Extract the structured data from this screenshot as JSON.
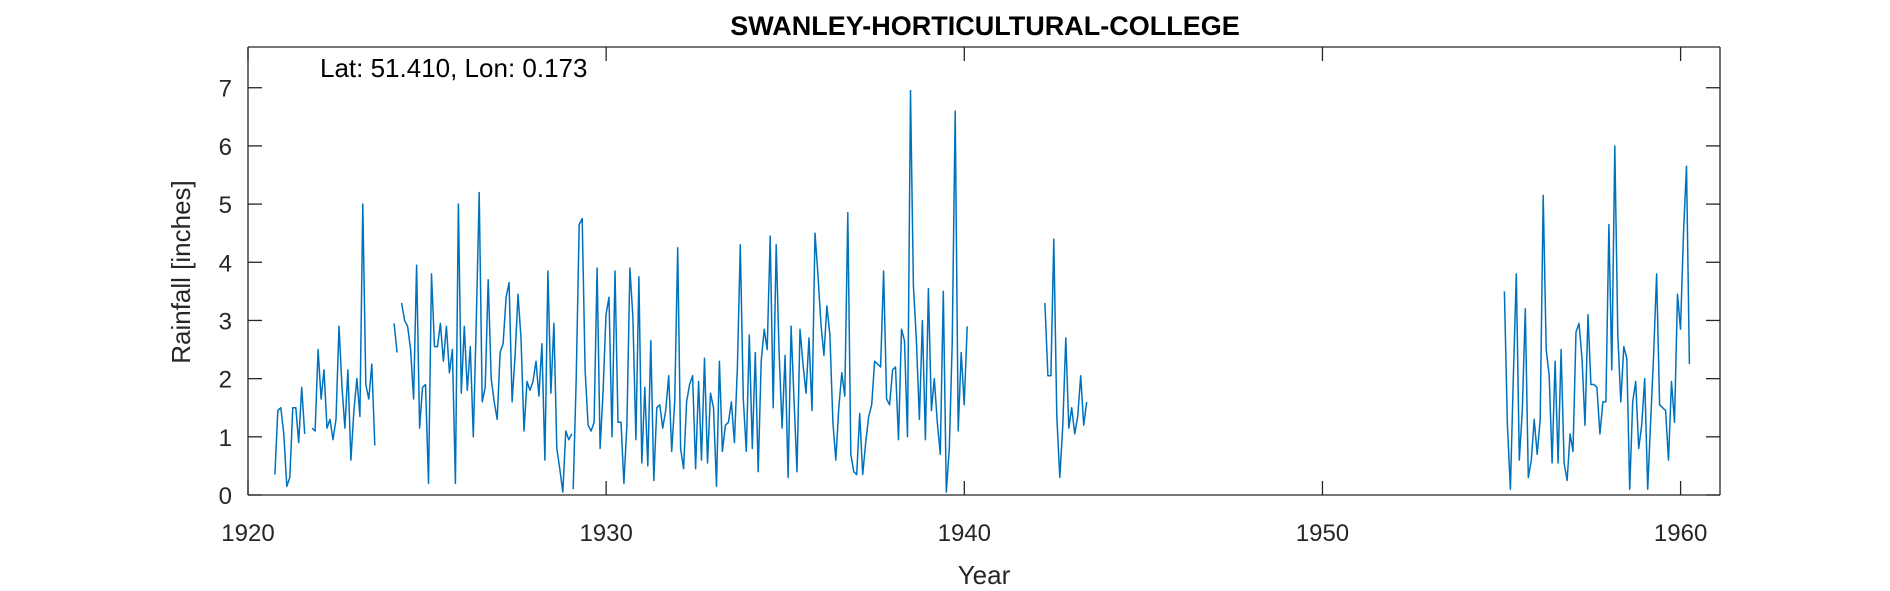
{
  "chart_data": {
    "type": "line",
    "title": "SWANLEY-HORTICULTURAL-COLLEGE",
    "xlabel": "Year",
    "ylabel": "Rainfall [inches]",
    "annotation": "Lat: 51.410, Lon: 0.173",
    "xlim": [
      1920,
      1961.1
    ],
    "ylim": [
      0,
      7.7
    ],
    "xticks": [
      1920,
      1930,
      1940,
      1950,
      1960
    ],
    "yticks": [
      0,
      1,
      2,
      3,
      4,
      5,
      6,
      7
    ],
    "grid": false,
    "line_color": "#0072bd",
    "series": [
      {
        "segments": [
          {
            "start": 1920.75,
            "values": [
              0.35,
              1.45,
              1.5,
              1.05,
              0.15,
              0.3,
              1.5,
              1.5,
              0.9,
              1.85,
              1.05
            ]
          },
          {
            "start": 1921.79,
            "values": [
              1.15,
              1.1,
              2.5,
              1.65,
              2.15,
              1.15,
              1.3,
              0.95,
              1.3,
              2.9,
              1.85,
              1.15,
              2.15,
              0.6,
              1.45,
              2.0,
              1.35,
              5.0,
              1.9,
              1.65,
              2.25,
              0.85
            ]
          },
          {
            "start": 1924.08,
            "values": [
              2.95,
              2.45
            ]
          },
          {
            "start": 1924.29,
            "values": [
              3.3,
              3.0,
              2.9,
              2.5,
              1.65,
              3.95,
              1.15,
              1.85,
              1.9,
              0.2,
              3.8,
              2.55,
              2.55,
              2.95,
              2.3,
              2.9,
              2.1,
              2.5,
              0.2,
              5.0,
              1.75,
              2.9,
              1.8,
              2.55,
              1.0,
              3.0,
              5.2,
              1.6,
              1.85,
              3.7,
              2.0,
              1.6,
              1.3,
              2.45,
              2.6,
              3.4,
              3.65,
              1.6,
              2.4,
              3.45,
              2.7,
              1.1,
              1.95,
              1.8,
              1.95,
              2.3,
              1.7,
              2.6,
              0.6,
              3.85,
              1.75,
              2.95,
              0.8,
              0.45,
              0.05,
              1.1,
              0.95,
              1.05
            ]
          },
          {
            "start": 1929.08,
            "values": [
              0.1,
              2.0,
              4.65,
              4.75,
              2.15,
              1.2,
              1.1,
              1.25,
              3.9,
              0.8,
              1.75,
              3.1,
              3.4,
              1.0,
              3.85,
              1.25,
              1.25,
              0.2,
              1.2,
              3.9,
              3.05,
              0.95,
              3.75,
              0.55,
              1.85,
              0.5,
              2.65,
              0.25,
              1.5,
              1.55,
              1.15,
              1.45,
              2.05,
              0.75,
              1.6,
              4.25,
              0.8,
              0.45,
              1.6,
              1.9,
              2.05,
              0.45,
              1.95,
              0.6,
              2.35,
              0.55,
              1.75,
              1.5,
              0.15,
              2.3,
              0.75,
              1.2,
              1.25,
              1.6,
              0.9,
              2.2,
              4.3,
              1.65,
              0.75,
              2.75,
              0.8,
              2.45,
              0.4,
              2.3,
              2.85,
              2.5,
              4.45,
              1.5,
              4.3,
              2.45,
              1.15,
              2.4,
              0.3,
              2.9,
              1.6,
              0.4,
              2.85,
              2.25,
              1.75,
              2.7,
              1.45,
              4.5,
              3.8,
              2.95,
              2.4,
              3.25,
              2.75,
              1.25,
              0.6,
              1.5,
              2.1,
              1.7,
              4.85,
              0.7,
              0.4,
              0.35,
              1.4,
              0.35,
              0.9,
              1.35,
              1.55,
              2.3,
              2.25,
              2.2,
              3.85,
              1.65,
              1.55,
              2.15,
              2.2,
              0.95,
              2.85,
              2.65,
              1.0,
              6.95,
              3.6,
              2.65,
              1.3,
              3.0,
              0.95,
              3.55,
              1.45,
              2.0,
              1.25,
              0.7,
              3.5,
              0.05,
              0.8,
              2.6,
              6.6,
              1.1,
              2.45,
              1.55,
              2.9
            ]
          },
          {
            "start": 1942.25,
            "values": [
              3.3,
              2.05,
              2.05,
              4.4,
              1.35,
              0.3,
              1.2,
              2.7,
              1.15,
              1.5,
              1.05,
              1.35,
              2.05,
              1.2,
              1.6
            ]
          },
          {
            "start": 1955.08,
            "values": [
              3.5,
              1.2,
              0.1,
              2.0,
              3.8,
              0.6,
              1.45,
              3.2,
              0.3,
              0.6,
              1.3,
              0.7,
              1.3,
              5.15,
              2.5,
              2.05,
              0.55,
              2.3,
              0.55,
              2.5,
              0.55,
              0.25,
              1.05,
              0.75,
              2.8,
              2.95,
              2.35,
              1.2,
              3.1,
              1.9,
              1.9,
              1.85,
              1.05,
              1.6,
              1.6,
              4.65,
              2.15,
              6.0,
              2.75,
              1.6,
              2.55,
              2.35,
              0.1,
              1.6,
              1.95,
              0.8,
              1.2,
              2.0,
              0.1,
              1.25,
              2.4,
              3.8,
              1.55,
              1.5,
              1.45,
              0.6,
              1.95,
              1.25,
              3.45,
              2.85,
              4.5,
              5.65,
              2.25
            ]
          }
        ]
      }
    ]
  }
}
